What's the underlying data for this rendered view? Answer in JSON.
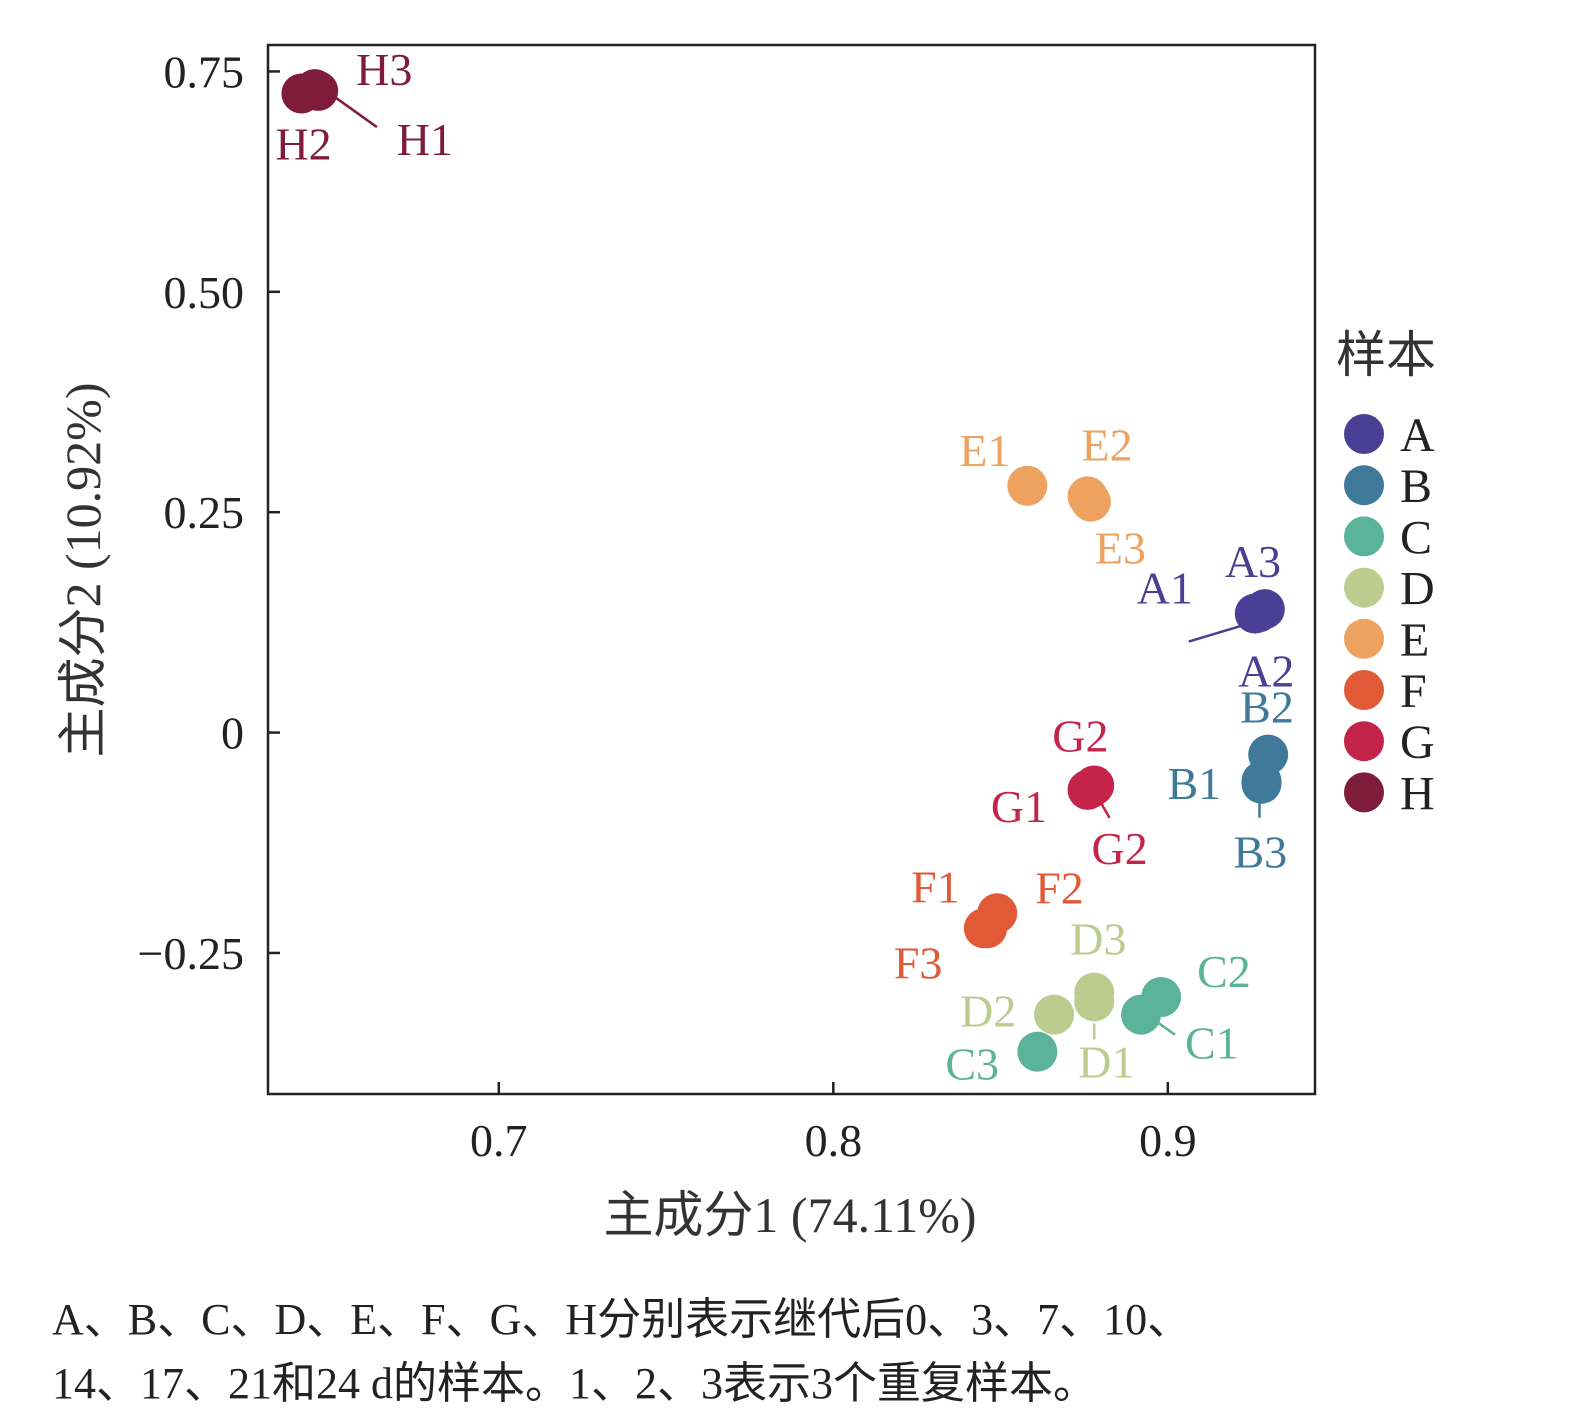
{
  "chart_data": {
    "type": "scatter",
    "xlabel": "主成分1 (74.11%)",
    "ylabel": "主成分2 (10.92%)",
    "xlim": [
      0.631,
      0.944
    ],
    "ylim": [
      -0.41,
      0.78
    ],
    "x_ticks": [
      0.7,
      0.8,
      0.9
    ],
    "x_tick_labels": [
      "0.7",
      "0.8",
      "0.9"
    ],
    "y_ticks": [
      0.75,
      0.5,
      0.25,
      0,
      -0.25
    ],
    "y_tick_labels": [
      "0.75",
      "0.50",
      "0.25",
      "0",
      "−0.25"
    ],
    "grid": false,
    "legend": {
      "title": "样本",
      "position": "right"
    },
    "series": [
      {
        "name": "A",
        "color": "#4a3f94",
        "points": [
          {
            "label": "A1",
            "x": 0.926,
            "y": 0.135
          },
          {
            "label": "A2",
            "x": 0.927,
            "y": 0.136
          },
          {
            "label": "A3",
            "x": 0.929,
            "y": 0.14
          }
        ]
      },
      {
        "name": "B",
        "color": "#3f7a9a",
        "points": [
          {
            "label": "B1",
            "x": 0.928,
            "y": -0.055
          },
          {
            "label": "B2",
            "x": 0.93,
            "y": -0.025
          },
          {
            "label": "B3",
            "x": 0.928,
            "y": -0.058
          }
        ]
      },
      {
        "name": "C",
        "color": "#5bb49a",
        "points": [
          {
            "label": "C1",
            "x": 0.892,
            "y": -0.32
          },
          {
            "label": "C2",
            "x": 0.898,
            "y": -0.3
          },
          {
            "label": "C3",
            "x": 0.861,
            "y": -0.362
          }
        ]
      },
      {
        "name": "D",
        "color": "#bccb8e",
        "points": [
          {
            "label": "D1",
            "x": 0.878,
            "y": -0.305
          },
          {
            "label": "D2",
            "x": 0.866,
            "y": -0.32
          },
          {
            "label": "D3",
            "x": 0.878,
            "y": -0.295
          }
        ]
      },
      {
        "name": "E",
        "color": "#eda35f",
        "points": [
          {
            "label": "E1",
            "x": 0.858,
            "y": 0.28
          },
          {
            "label": "E2",
            "x": 0.876,
            "y": 0.268
          },
          {
            "label": "E3",
            "x": 0.877,
            "y": 0.262
          }
        ]
      },
      {
        "name": "F",
        "color": "#e15a38",
        "points": [
          {
            "label": "F1",
            "x": 0.846,
            "y": -0.222
          },
          {
            "label": "F2",
            "x": 0.849,
            "y": -0.205
          },
          {
            "label": "F3",
            "x": 0.845,
            "y": -0.222
          }
        ]
      },
      {
        "name": "G",
        "color": "#c4244a",
        "points": [
          {
            "label": "G1",
            "x": 0.877,
            "y": -0.063
          },
          {
            "label": "G2",
            "x": 0.876,
            "y": -0.065
          },
          {
            "label": "G2",
            "x": 0.878,
            "y": -0.06
          }
        ]
      },
      {
        "name": "H",
        "color": "#7f1c3c",
        "points": [
          {
            "label": "H1",
            "x": 0.645,
            "y": 0.73
          },
          {
            "label": "H2",
            "x": 0.641,
            "y": 0.725
          },
          {
            "label": "H3",
            "x": 0.646,
            "y": 0.728
          }
        ]
      }
    ]
  },
  "caption": {
    "line1": "A、B、C、D、E、F、G、H分别表示继代后0、3、7、10、",
    "line2": "14、17、21和24 d的样本。1、2、3表示3个重复样本。"
  }
}
